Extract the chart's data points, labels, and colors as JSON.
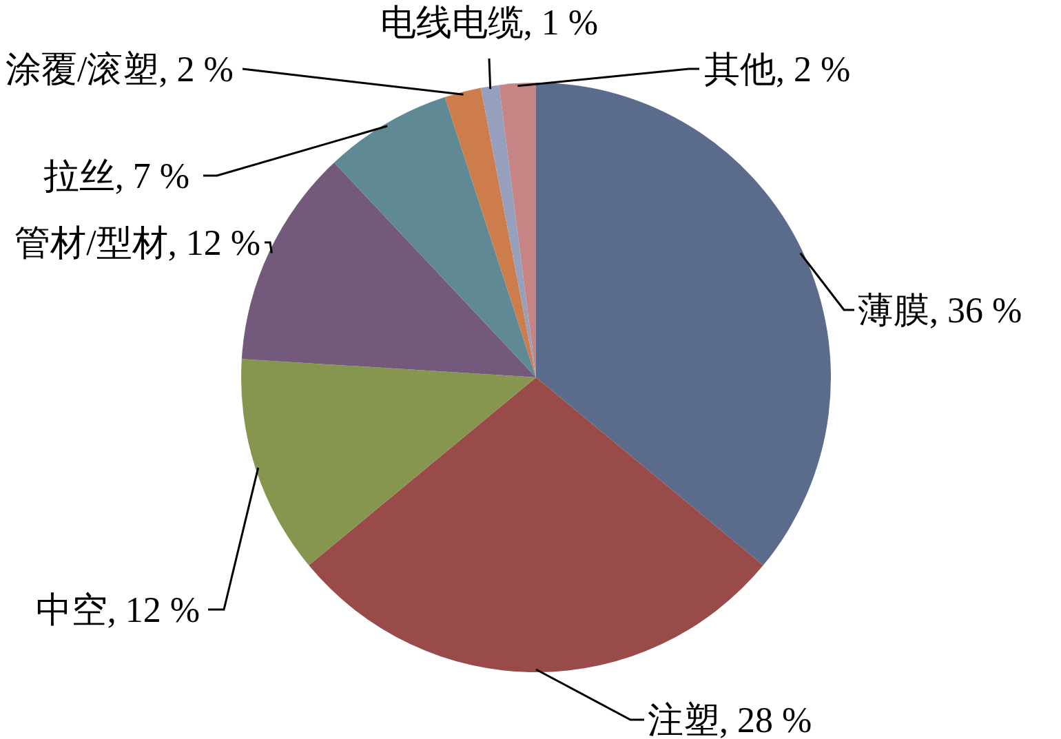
{
  "chart_data": {
    "type": "pie",
    "categories": [
      "薄膜",
      "注塑",
      "中空",
      "管材/型材",
      "拉丝",
      "涂覆/滚塑",
      "电线电缆",
      "其他"
    ],
    "values": [
      36,
      28,
      12,
      12,
      7,
      2,
      1,
      2
    ],
    "value_labels": [
      "36 %",
      "28 %",
      "12 %",
      "12 %",
      "7 %",
      "2 %",
      "1 %",
      "2 %"
    ],
    "colors": [
      "#5b6b8c",
      "#984b49",
      "#87964f",
      "#73597c",
      "#5f8a95",
      "#cd7d4b",
      "#96a0bd",
      "#c68584"
    ]
  }
}
